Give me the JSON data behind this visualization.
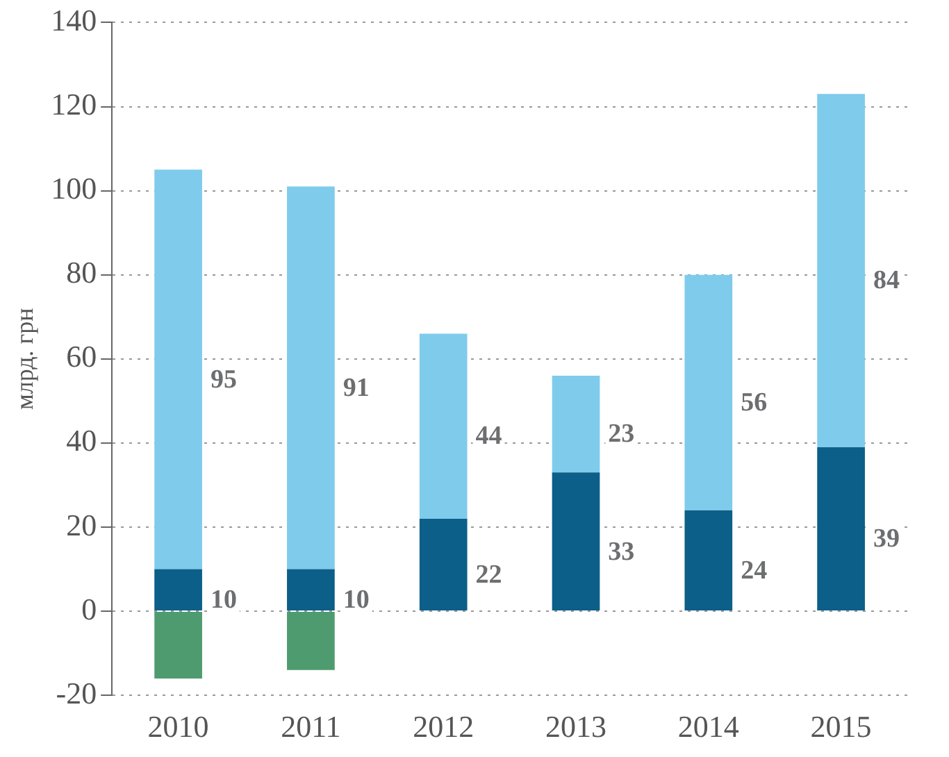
{
  "chart_data": {
    "type": "bar",
    "stacked": true,
    "ylabel": "млрд. грн",
    "categories": [
      "2010",
      "2011",
      "2012",
      "2013",
      "2014",
      "2015"
    ],
    "series": [
      {
        "color": "#0b5f88",
        "values": [
          10,
          10,
          22,
          33,
          24,
          39
        ],
        "value_labels": [
          "10",
          "10",
          "22",
          "33",
          "24",
          "39"
        ]
      },
      {
        "color": "#7fcbec",
        "values": [
          95,
          91,
          44,
          23,
          56,
          84
        ],
        "value_labels": [
          "95",
          "91",
          "44",
          "23",
          "56",
          "84"
        ]
      },
      {
        "color": "#4f9b70",
        "values": [
          -16,
          -14,
          null,
          null,
          null,
          null
        ]
      }
    ],
    "ylim": [
      -20,
      140
    ],
    "yticks": [
      -20,
      0,
      20,
      40,
      60,
      80,
      100,
      120,
      140
    ],
    "grid": "y",
    "legend": false
  }
}
